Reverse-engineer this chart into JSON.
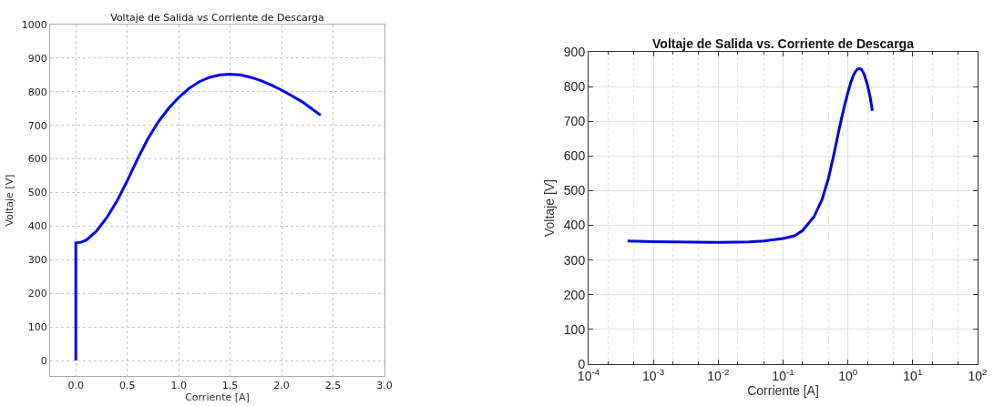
{
  "chart_data": [
    {
      "type": "line",
      "title": "Voltaje de Salida vs Corriente de Descarga",
      "xlabel": "Corriente [A]",
      "ylabel": "Voltaje [V]",
      "xlim": [
        -0.25,
        3.0
      ],
      "xticks": [
        {
          "value": 0,
          "label": "0.0"
        },
        0.5,
        {
          "value": 1,
          "label": "1.0"
        },
        1.5,
        {
          "value": 2,
          "label": "2.0"
        },
        2.5,
        {
          "value": 3,
          "label": "3.0"
        }
      ],
      "ylim": [
        -46,
        1000
      ],
      "yticks": [
        0,
        100,
        200,
        300,
        400,
        500,
        600,
        700,
        800,
        900,
        1000
      ],
      "grid": true,
      "line_style": "solid",
      "x": [
        0,
        0,
        0.05,
        0.1,
        0.2,
        0.3,
        0.4,
        0.5,
        0.6,
        0.7,
        0.8,
        0.9,
        1.0,
        1.1,
        1.2,
        1.3,
        1.4,
        1.5,
        1.6,
        1.7,
        1.8,
        1.9,
        2.0,
        2.1,
        2.2,
        2.3,
        2.38
      ],
      "series": [
        {
          "color": "#0000ff",
          "values": [
            0,
            350,
            352,
            358,
            385,
            425,
            475,
            535,
            600,
            660,
            710,
            750,
            783,
            810,
            830,
            843,
            850,
            852,
            850,
            843,
            833,
            820,
            805,
            788,
            770,
            748,
            730
          ]
        }
      ]
    },
    {
      "type": "line",
      "title": "Voltaje de Salida vs. Corriente de Descarga",
      "xlabel": "Corriente [A]",
      "ylabel": "Voltaje [V]",
      "log": "x",
      "xlim": [
        0.0001,
        100
      ],
      "xticks": [
        {
          "value": 0.0001,
          "label": "10$^{-4}$"
        },
        {
          "value": 0.001,
          "label": "10$^{-3}$"
        },
        {
          "value": 0.01,
          "label": "10$^{-2}$"
        },
        {
          "value": 0.1,
          "label": "10$^{-1}$"
        },
        {
          "value": 1,
          "label": "10$^{0}$"
        },
        {
          "value": 10,
          "label": "10$^{1}$"
        },
        {
          "value": 100,
          "label": "10$^{2}$"
        }
      ],
      "ylim": [
        0,
        900
      ],
      "yticks": [
        0,
        100,
        200,
        300,
        400,
        500,
        600,
        700,
        800,
        900
      ],
      "grid": true,
      "line_style": "solid",
      "x": [
        0.0004,
        0.001,
        0.01,
        0.03,
        0.05,
        0.1,
        0.15,
        0.2,
        0.3,
        0.4,
        0.5,
        0.6,
        0.7,
        0.8,
        0.9,
        1.0,
        1.1,
        1.2,
        1.3,
        1.4,
        1.5,
        1.6,
        1.7,
        1.8,
        2.0,
        2.2,
        2.38
      ],
      "series": [
        {
          "color": "#0000dd",
          "values": [
            355,
            353,
            351,
            352,
            355,
            362,
            370,
            385,
            425,
            475,
            535,
            600,
            660,
            710,
            750,
            783,
            810,
            830,
            843,
            850,
            852,
            850,
            843,
            833,
            805,
            770,
            730
          ]
        }
      ]
    }
  ]
}
